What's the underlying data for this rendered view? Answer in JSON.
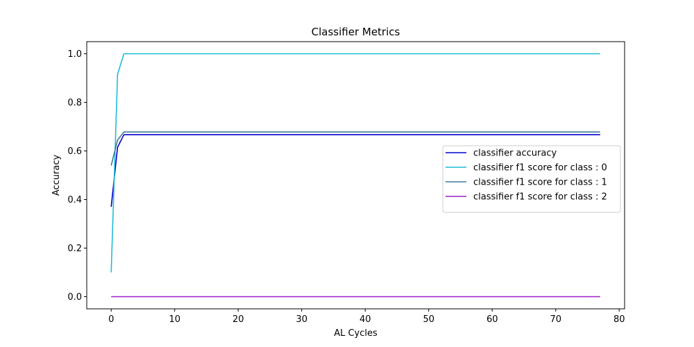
{
  "chart_data": {
    "type": "line",
    "title": "Classifier Metrics",
    "xlabel": "AL Cycles",
    "ylabel": "Accuracy",
    "xlim": [
      -3.85,
      80.85
    ],
    "ylim": [
      -0.05,
      1.05
    ],
    "xticks": [
      0,
      10,
      20,
      30,
      40,
      50,
      60,
      70,
      80
    ],
    "xtick_labels": [
      "0",
      "10",
      "20",
      "30",
      "40",
      "50",
      "60",
      "70",
      "80"
    ],
    "yticks": [
      0.0,
      0.2,
      0.4,
      0.6,
      0.8,
      1.0
    ],
    "ytick_labels": [
      "0.0",
      "0.2",
      "0.4",
      "0.6",
      "0.8",
      "1.0"
    ],
    "grid": false,
    "legend_position": "center-right",
    "series": [
      {
        "name": "classifier accuracy",
        "color": "#0000cd",
        "x": [
          0,
          1,
          2,
          3,
          77
        ],
        "y": [
          0.37,
          0.615,
          0.667,
          0.667,
          0.667
        ]
      },
      {
        "name": "classifier f1 score for class : 0",
        "color": "#1fbcd6",
        "x": [
          0,
          1,
          2,
          3,
          77
        ],
        "y": [
          0.1,
          0.915,
          1.0,
          1.0,
          1.0
        ]
      },
      {
        "name": "classifier f1 score for class : 1",
        "color": "#3e7a96",
        "x": [
          0,
          1,
          2,
          3,
          77
        ],
        "y": [
          0.54,
          0.645,
          0.678,
          0.678,
          0.678
        ]
      },
      {
        "name": "classifier f1 score for class : 2",
        "color": "#9b1fc9",
        "x": [
          0,
          77
        ],
        "y": [
          0.0,
          0.0
        ]
      }
    ]
  }
}
